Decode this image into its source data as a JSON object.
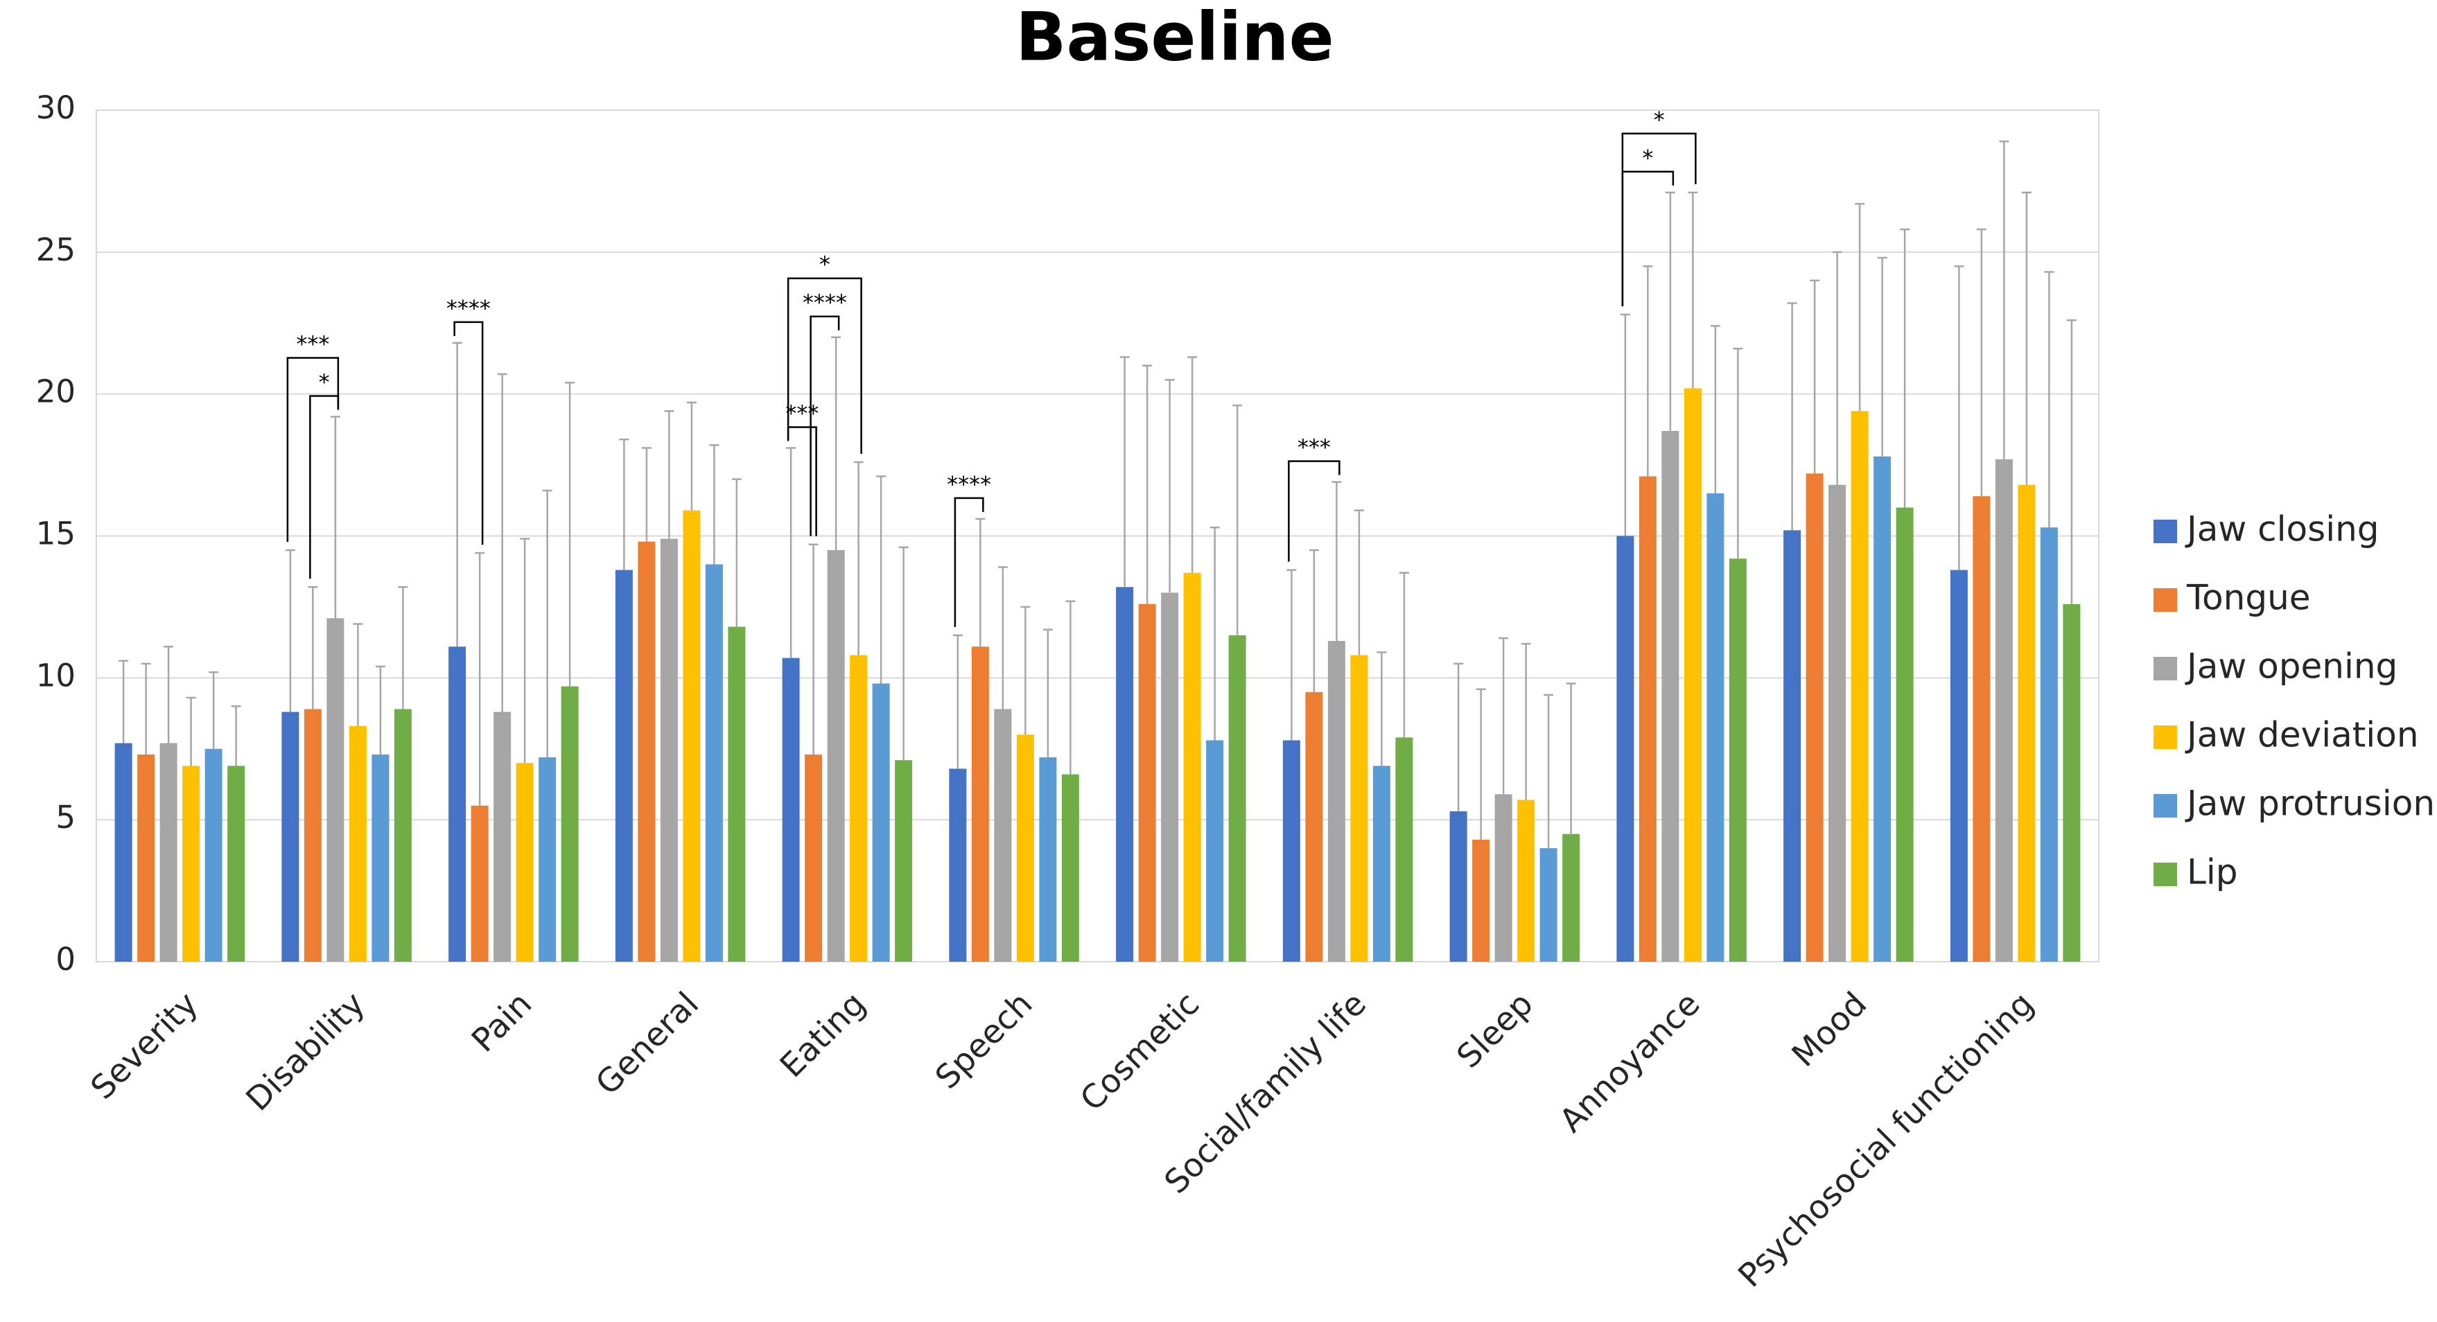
{
  "chart_data": {
    "type": "bar",
    "title": "Baseline",
    "categories": [
      "Severity",
      "Disability",
      "Pain",
      "General",
      "Eating",
      "Speech",
      "Cosmetic",
      "Social/family life",
      "Sleep",
      "Annoyance",
      "Mood",
      "Psychosocial functioning"
    ],
    "series": [
      {
        "name": "Jaw closing",
        "color": "#4472c4",
        "values": [
          7.7,
          8.8,
          11.1,
          13.8,
          10.7,
          6.8,
          13.2,
          7.8,
          5.3,
          15.0,
          15.2,
          13.8
        ],
        "errors": [
          2.9,
          5.7,
          10.7,
          4.6,
          7.4,
          4.7,
          8.1,
          6.0,
          5.2,
          7.8,
          8.0,
          10.7
        ]
      },
      {
        "name": "Tongue",
        "color": "#ed7d31",
        "values": [
          7.3,
          8.9,
          5.5,
          14.8,
          7.3,
          11.1,
          12.6,
          9.5,
          4.3,
          17.1,
          17.2,
          16.4
        ],
        "errors": [
          3.2,
          4.3,
          8.9,
          3.3,
          7.4,
          4.5,
          8.4,
          5.0,
          5.3,
          7.4,
          6.8,
          9.4
        ]
      },
      {
        "name": "Jaw opening",
        "color": "#a5a5a5",
        "values": [
          7.7,
          12.1,
          8.8,
          14.9,
          14.5,
          8.9,
          13.0,
          11.3,
          5.9,
          18.7,
          16.8,
          17.7
        ],
        "errors": [
          3.4,
          7.1,
          11.9,
          4.5,
          7.5,
          5.0,
          7.5,
          5.6,
          5.5,
          8.4,
          8.2,
          11.2
        ]
      },
      {
        "name": "Jaw deviation",
        "color": "#ffc000",
        "values": [
          6.9,
          8.3,
          7.0,
          15.9,
          10.8,
          8.0,
          13.7,
          10.8,
          5.7,
          20.2,
          19.4,
          16.8
        ],
        "errors": [
          2.4,
          3.6,
          7.9,
          3.8,
          6.8,
          4.5,
          7.6,
          5.1,
          5.5,
          6.9,
          7.3,
          10.3
        ]
      },
      {
        "name": "Jaw protrusion",
        "color": "#5b9bd5",
        "values": [
          7.5,
          7.3,
          7.2,
          14.0,
          9.8,
          7.2,
          7.8,
          6.9,
          4.0,
          16.5,
          17.8,
          15.3
        ],
        "errors": [
          2.7,
          3.1,
          9.4,
          4.2,
          7.3,
          4.5,
          7.5,
          4.0,
          5.4,
          5.9,
          7.0,
          9.0
        ]
      },
      {
        "name": "Lip",
        "color": "#70ad47",
        "values": [
          6.9,
          8.9,
          9.7,
          11.8,
          7.1,
          6.6,
          11.5,
          7.9,
          4.5,
          14.2,
          16.0,
          12.6
        ],
        "errors": [
          2.1,
          4.3,
          10.7,
          5.2,
          7.5,
          6.1,
          8.1,
          5.8,
          5.3,
          7.4,
          9.8,
          10.0
        ]
      }
    ],
    "significance": [
      {
        "category": 1,
        "from": 1,
        "to": 2,
        "label": "*"
      },
      {
        "category": 1,
        "from": 0,
        "to": 2,
        "label": "***"
      },
      {
        "category": 2,
        "from": 0,
        "to": 1,
        "label": "****"
      },
      {
        "category": 4,
        "from": 0,
        "to": 1,
        "label": "***"
      },
      {
        "category": 4,
        "from": 1,
        "to": 2,
        "label": "****"
      },
      {
        "category": 4,
        "from": 0,
        "to": 3,
        "label": "*"
      },
      {
        "category": 5,
        "from": 0,
        "to": 1,
        "label": "****"
      },
      {
        "category": 7,
        "from": 0,
        "to": 2,
        "label": "***"
      },
      {
        "category": 9,
        "from": 0,
        "to": 2,
        "label": "*"
      },
      {
        "category": 9,
        "from": 0,
        "to": 3,
        "label": "*"
      }
    ],
    "ylim": [
      0,
      30
    ],
    "yticks": [
      0,
      5,
      10,
      15,
      20,
      25,
      30
    ],
    "grid": true,
    "legend": "right",
    "error_color": "#a6a6a6"
  }
}
